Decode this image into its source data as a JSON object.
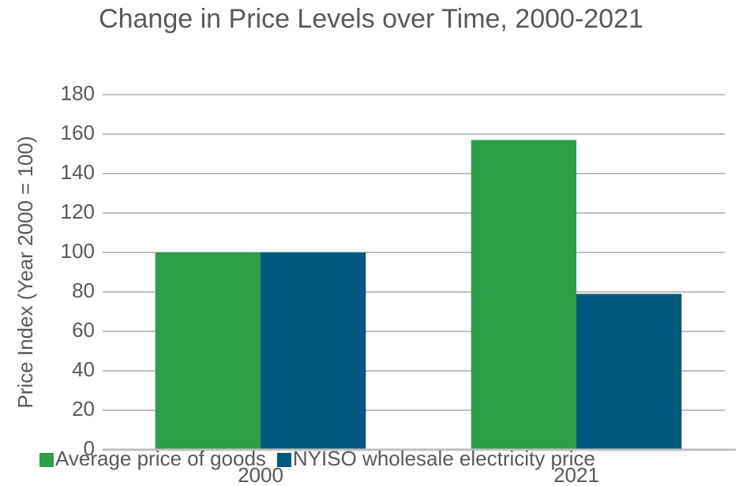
{
  "chart_data": {
    "type": "bar",
    "title": "Change in Price Levels over Time, 2000-2021",
    "y_label": "Price Index (Year 2000 = 100)",
    "categories": [
      "2000",
      "2021"
    ],
    "series": [
      {
        "name": "Average price of goods",
        "color": "#2e9e48",
        "values": [
          100,
          157
        ]
      },
      {
        "name": "NYISO wholesale electricity price",
        "color": "#005a80",
        "values": [
          100,
          79
        ]
      }
    ],
    "ylim": [
      0,
      180
    ],
    "yticks": [
      0,
      20,
      40,
      60,
      80,
      100,
      120,
      140,
      160,
      180
    ],
    "grid": true,
    "legend": "bottom"
  }
}
